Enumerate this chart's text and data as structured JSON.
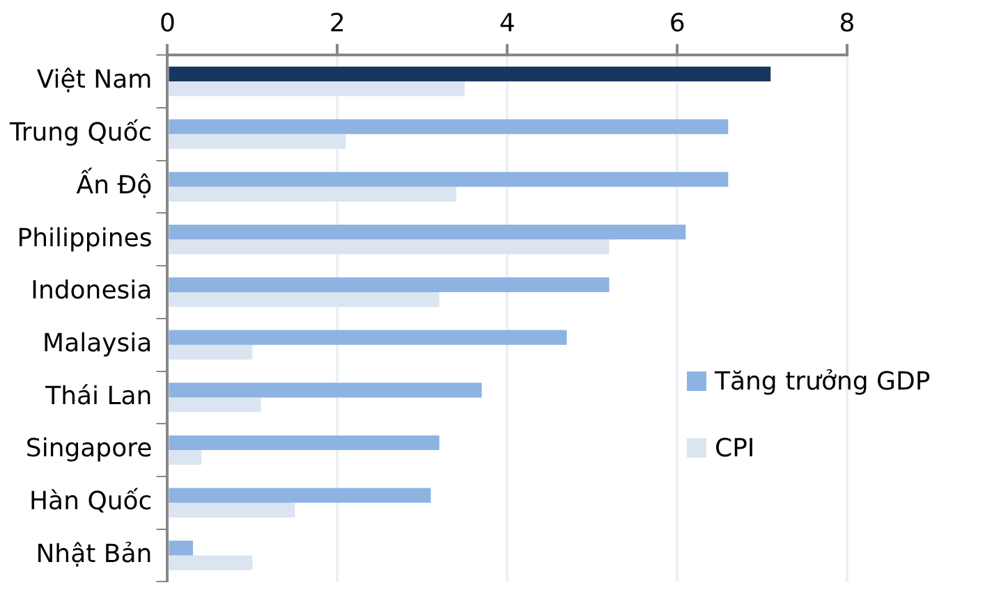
{
  "chart_data": {
    "type": "bar",
    "orientation": "horizontal",
    "categories": [
      "Việt Nam",
      "Trung Quốc",
      "Ấn Độ",
      "Philippines",
      "Indonesia",
      "Malaysia",
      "Thái Lan",
      "Singapore",
      "Hàn Quốc",
      "Nhật Bản"
    ],
    "series": [
      {
        "name": "Tăng trưởng GDP",
        "color": "#8db3e2",
        "colors": [
          "#17375e",
          "#8db3e2",
          "#8db3e2",
          "#8db3e2",
          "#8db3e2",
          "#8db3e2",
          "#8db3e2",
          "#8db3e2",
          "#8db3e2",
          "#8db3e2"
        ],
        "values": [
          7.1,
          6.6,
          6.6,
          6.1,
          5.2,
          4.7,
          3.7,
          3.2,
          3.1,
          0.3
        ]
      },
      {
        "name": "CPI",
        "color": "#dbe5f1",
        "values": [
          3.5,
          2.1,
          3.4,
          5.2,
          3.2,
          1.0,
          1.1,
          0.4,
          1.5,
          1.0
        ]
      }
    ],
    "xlim": [
      0,
      8
    ],
    "xticks": [
      0,
      2,
      4,
      6,
      8
    ],
    "grid": "x",
    "legend": "right"
  }
}
